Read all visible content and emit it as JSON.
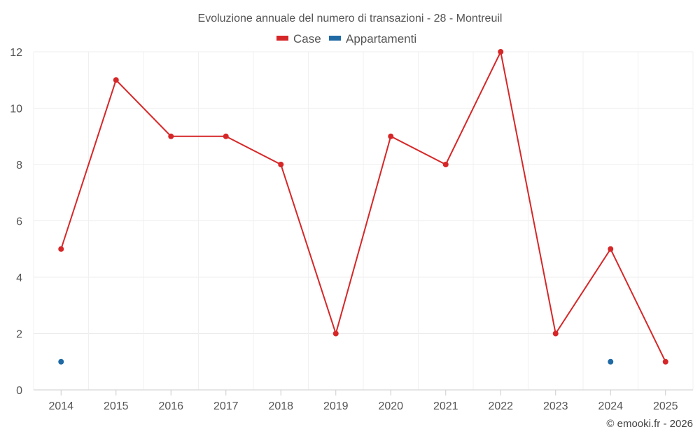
{
  "chart_data": {
    "type": "line",
    "title": "Evoluzione annuale del numero di transazioni - 28 - Montreuil",
    "categories": [
      "2014",
      "2015",
      "2016",
      "2017",
      "2018",
      "2019",
      "2020",
      "2021",
      "2022",
      "2023",
      "2024",
      "2025"
    ],
    "series": [
      {
        "name": "Case",
        "color": "#d62728",
        "values": [
          5,
          11,
          9,
          9,
          8,
          2,
          9,
          8,
          12,
          2,
          5,
          1
        ]
      },
      {
        "name": "Appartamenti",
        "color": "#1f6aa5",
        "values": [
          1,
          null,
          null,
          null,
          null,
          null,
          null,
          null,
          null,
          null,
          1,
          null
        ]
      }
    ],
    "ylim": [
      0,
      12
    ],
    "yticks": [
      0,
      2,
      4,
      6,
      8,
      10,
      12
    ],
    "xlabel": "",
    "ylabel": "",
    "grid": true,
    "legend_position": "top-center",
    "credit": "© emooki.fr - 2026"
  }
}
